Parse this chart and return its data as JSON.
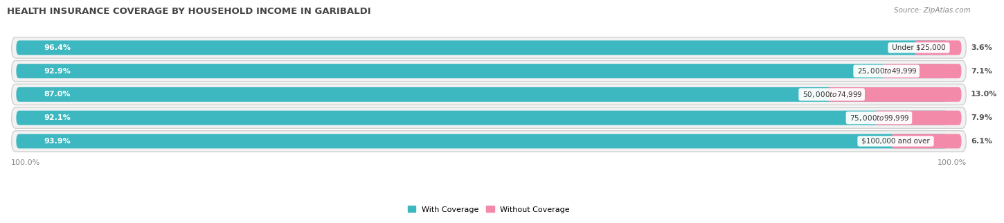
{
  "title": "HEALTH INSURANCE COVERAGE BY HOUSEHOLD INCOME IN GARIBALDI",
  "source": "Source: ZipAtlas.com",
  "categories": [
    "Under $25,000",
    "$25,000 to $49,999",
    "$50,000 to $74,999",
    "$75,000 to $99,999",
    "$100,000 and over"
  ],
  "with_coverage": [
    96.4,
    92.9,
    87.0,
    92.1,
    93.9
  ],
  "without_coverage": [
    3.6,
    7.1,
    13.0,
    7.9,
    6.1
  ],
  "color_with": "#3db8c0",
  "color_with_light": "#7dd4d8",
  "color_without": "#f48aaa",
  "color_without_dark": "#e8587a",
  "bg_color": "#ffffff",
  "row_bg": "#ebebeb",
  "row_bg_inner": "#f5f5f5",
  "title_fontsize": 9.5,
  "label_fontsize": 8.0,
  "tick_fontsize": 8,
  "bar_height": 0.62,
  "xlim": [
    0,
    100
  ]
}
